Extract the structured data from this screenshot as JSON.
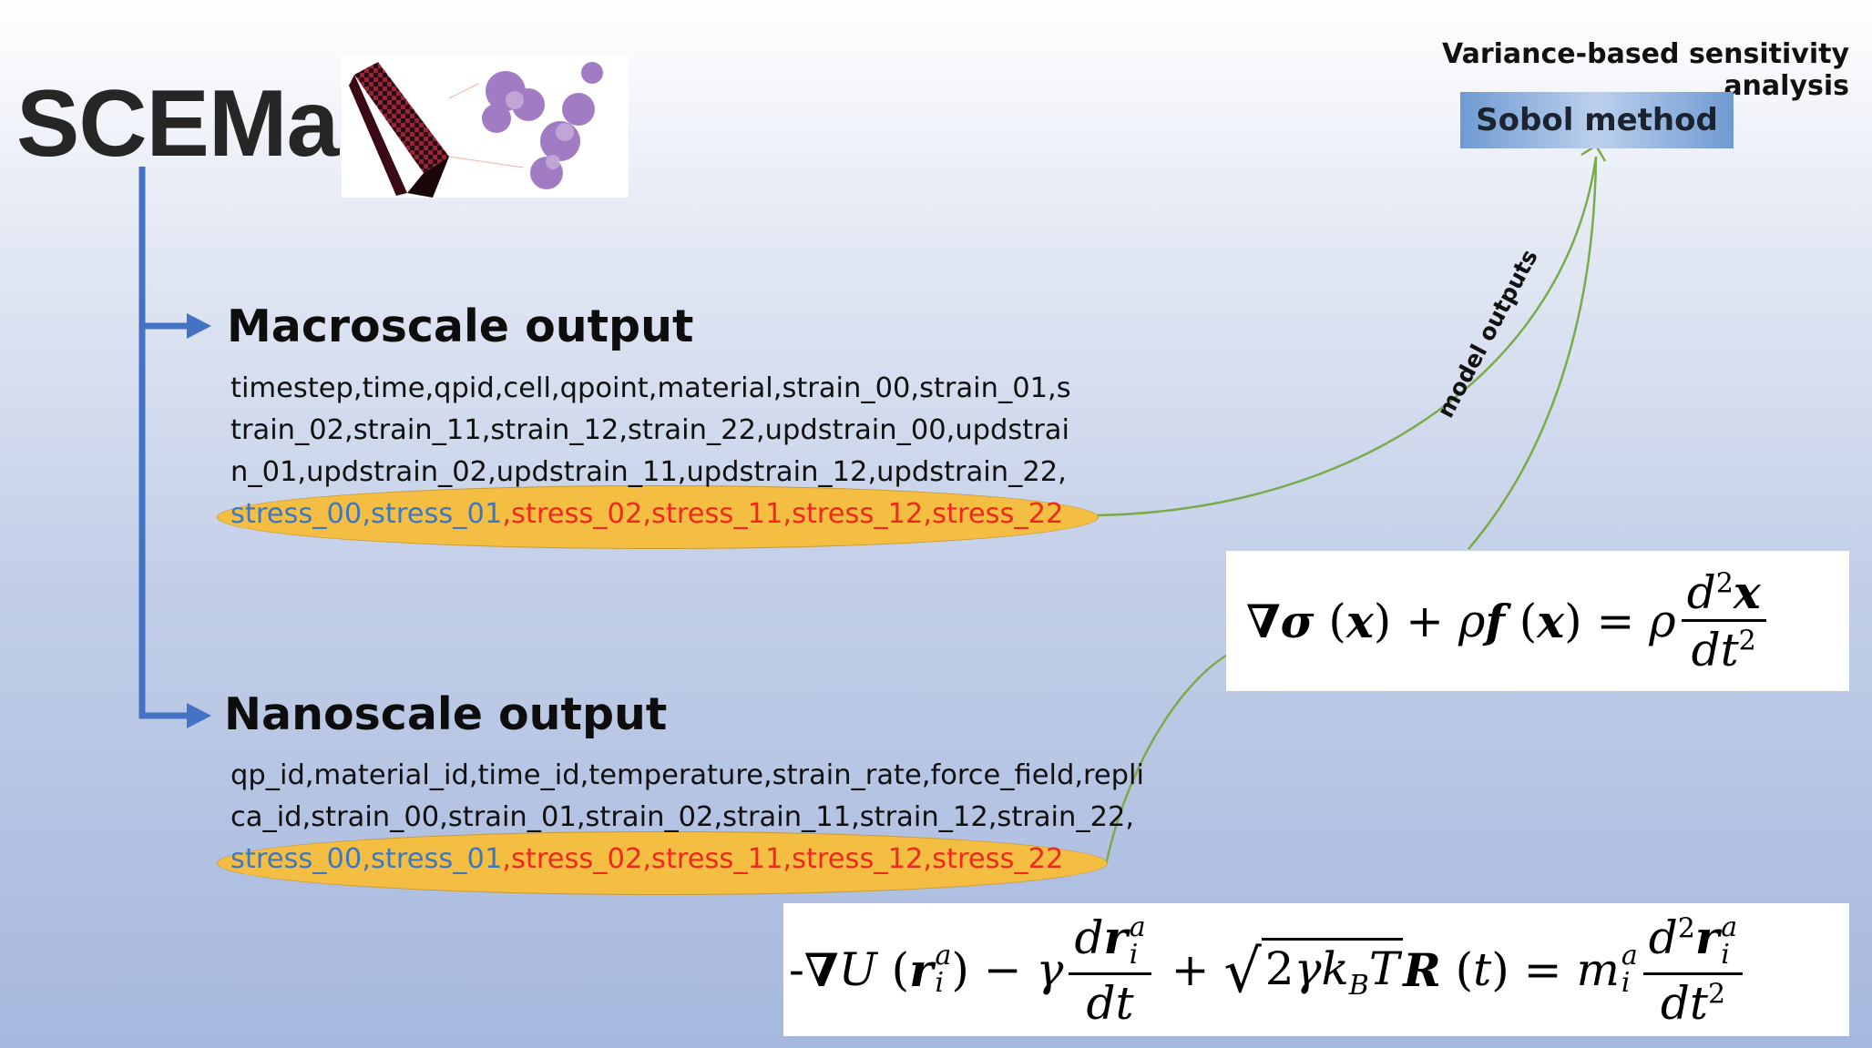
{
  "title": "SCEMa",
  "sensitivity_title": "Variance-based sensitivity analysis",
  "sobol_label": "Sobol method",
  "model_outputs_label": "model outputs",
  "macro": {
    "heading": "Macroscale output",
    "lines": [
      "timestep,time,qpid,cell,qpoint,material,strain_00,strain_01,s",
      "train_02,strain_11,strain_12,strain_22,updstrain_00,updstrai",
      "n_01,updstrain_02,updstrain_11,updstrain_12,updstrain_22,"
    ],
    "stress_blue": "stress_00,stress_01",
    "stress_red": ",stress_02,stress_11,stress_12,stress_22"
  },
  "nano": {
    "heading": "Nanoscale output",
    "lines": [
      "qp_id,material_id,time_id,temperature,strain_rate,force_field,repli",
      "ca_id,strain_00,strain_01,strain_02,strain_11,strain_12,strain_22,"
    ],
    "stress_blue": "stress_00,stress_01",
    "stress_red": ",stress_02,stress_11,stress_12,stress_22"
  },
  "colors": {
    "tree_line": "#4472c4",
    "connector": "#7aab4b",
    "stress_blue": "#3d78c4",
    "stress_red": "#f1281e",
    "ellipse_fill": "#f4be42"
  }
}
